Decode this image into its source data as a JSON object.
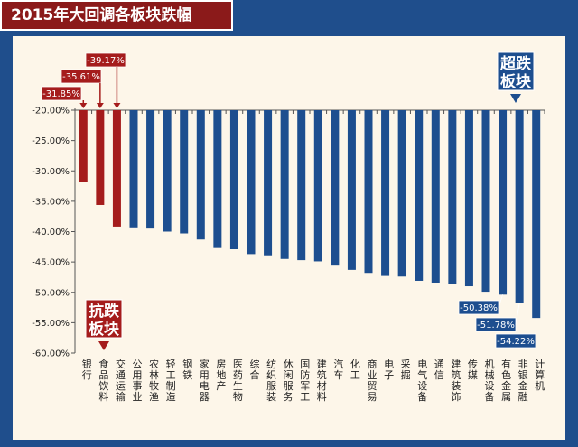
{
  "title": "2015年大回调各板块跌幅",
  "colors": {
    "defensive": "#a51c1c",
    "normal": "#1d4e8f",
    "frame": "#1f4e8c",
    "panel": "#fdf6e9"
  },
  "callouts": {
    "top": [
      "超跌",
      "板块"
    ],
    "bottom": [
      "抗跌",
      "板块"
    ]
  },
  "chart_data": {
    "type": "bar",
    "orientation": "vertical",
    "ylim": [
      -60,
      -20
    ],
    "yticks": [
      "-20.00%",
      "-25.00%",
      "-30.00%",
      "-35.00%",
      "-40.00%",
      "-45.00%",
      "-50.00%",
      "-55.00%",
      "-60.00%"
    ],
    "ytick_values": [
      -20,
      -25,
      -30,
      -35,
      -40,
      -45,
      -50,
      -55,
      -60
    ],
    "categories": [
      "银行",
      "食品饮料",
      "交通运输",
      "公用事业",
      "农林牧渔",
      "轻工制造",
      "钢铁",
      "家用电器",
      "房地产",
      "医药生物",
      "综合",
      "纺织服装",
      "休闲服务",
      "国防军工",
      "建筑材料",
      "汽车",
      "化工",
      "商业贸易",
      "电子",
      "采掘",
      "电气设备",
      "通信",
      "建筑装饰",
      "传媒",
      "机械设备",
      "有色金属",
      "非银金融",
      "计算机"
    ],
    "values": [
      -31.85,
      -35.61,
      -39.17,
      -39.3,
      -39.5,
      -40.0,
      -40.3,
      -41.3,
      -42.7,
      -42.9,
      -43.7,
      -43.9,
      -44.5,
      -44.7,
      -44.9,
      -45.6,
      -46.3,
      -46.8,
      -47.3,
      -47.4,
      -48.1,
      -48.4,
      -48.6,
      -49.0,
      -49.9,
      -50.38,
      -51.78,
      -54.22
    ],
    "highlight_indices": [
      0,
      1,
      2
    ],
    "data_labels": [
      {
        "index": 0,
        "text": "-31.85%"
      },
      {
        "index": 1,
        "text": "-35.61%"
      },
      {
        "index": 2,
        "text": "-39.17%"
      },
      {
        "index": 25,
        "text": "-50.38%"
      },
      {
        "index": 26,
        "text": "-51.78%"
      },
      {
        "index": 27,
        "text": "-54.22%"
      }
    ]
  }
}
